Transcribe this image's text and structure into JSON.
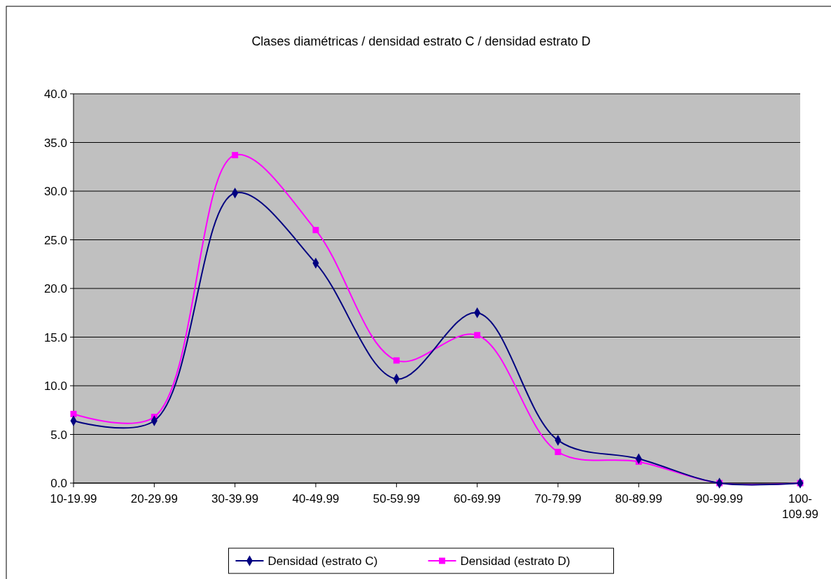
{
  "chart_data": {
    "type": "line",
    "title": "Clases diamétricas / densidad estrato C / densidad estrato D",
    "categories": [
      "10-19.99",
      "20-29.99",
      "30-39.99",
      "40-49.99",
      "50-59.99",
      "60-69.99",
      "70-79.99",
      "80-89.99",
      "90-99.99",
      "100-109.99"
    ],
    "series": [
      {
        "name": "Densidad (estrato C)",
        "color": "#000080",
        "marker": "diamond",
        "values": [
          6.4,
          6.4,
          29.8,
          22.6,
          10.7,
          17.5,
          4.4,
          2.5,
          0,
          0
        ]
      },
      {
        "name": "Densidad (estrato D)",
        "color": "#ff00ff",
        "marker": "square",
        "values": [
          7.1,
          6.8,
          33.7,
          26.0,
          12.6,
          15.2,
          3.2,
          2.2,
          0,
          0
        ]
      }
    ],
    "ylim": [
      0,
      40
    ],
    "yticks": [
      {
        "value": 0,
        "label": "0.0"
      },
      {
        "value": 5,
        "label": "5.0"
      },
      {
        "value": 10,
        "label": "10.0"
      },
      {
        "value": 15,
        "label": "15.0"
      },
      {
        "value": 20,
        "label": "20.0"
      },
      {
        "value": 25,
        "label": "25.0"
      },
      {
        "value": 30,
        "label": "30.0"
      },
      {
        "value": 35,
        "label": "35.0"
      },
      {
        "value": 40,
        "label": "40.0"
      }
    ],
    "grid": "y",
    "legend": "bottom",
    "line_style": "solid"
  }
}
